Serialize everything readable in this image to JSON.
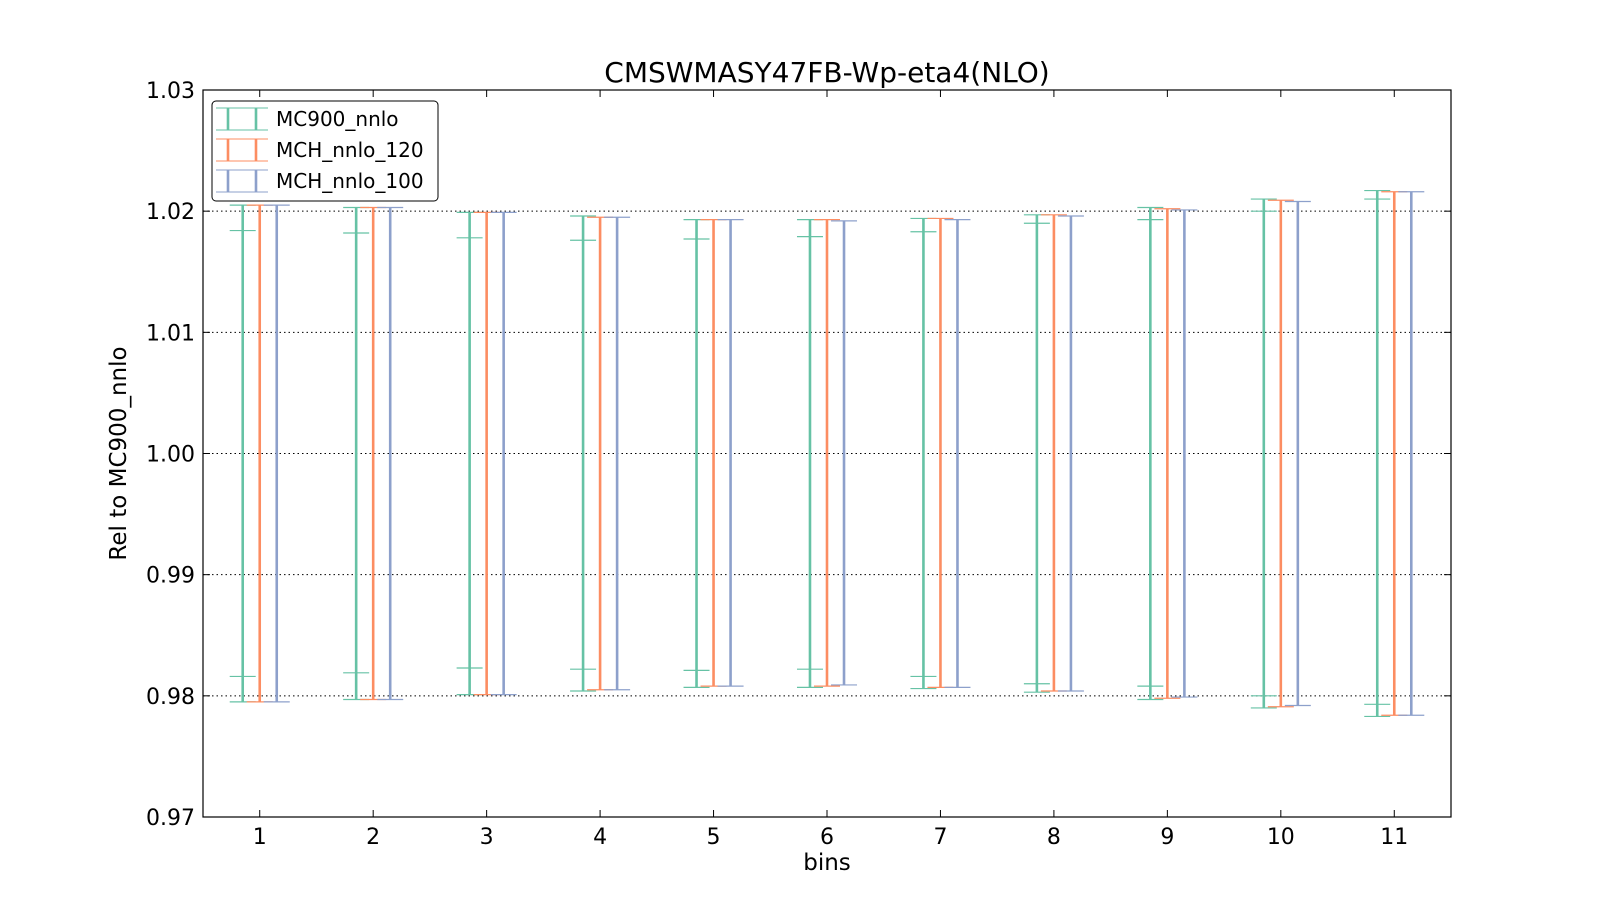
{
  "chart_data": {
    "type": "errorbar",
    "title": "CMSWMASY47FB-Wp-eta4(NLO)",
    "xlabel": "bins",
    "ylabel": "Rel to MC900_nnlo",
    "xlim": [
      0.5,
      11.5
    ],
    "ylim": [
      0.97,
      1.03
    ],
    "yticks": [
      "0.97",
      "0.98",
      "0.99",
      "1.00",
      "1.01",
      "1.02",
      "1.03"
    ],
    "categories": [
      "1",
      "2",
      "3",
      "4",
      "5",
      "6",
      "7",
      "8",
      "9",
      "10",
      "11"
    ],
    "grid": true,
    "legend_position": "top-left",
    "series": [
      {
        "name": "MC900_nnlo",
        "color": "#66c2a5",
        "lower": [
          0.9795,
          0.9797,
          0.9801,
          0.9804,
          0.9807,
          0.9807,
          0.9806,
          0.9803,
          0.9797,
          0.979,
          0.9783
        ],
        "upper": [
          1.0205,
          1.0203,
          1.0199,
          1.0196,
          1.0193,
          1.0193,
          1.0194,
          1.0197,
          1.0203,
          1.021,
          1.0217
        ],
        "inner_lower": [
          0.9816,
          0.9819,
          0.9823,
          0.9822,
          0.9821,
          0.9822,
          0.9816,
          0.981,
          0.9808,
          0.98,
          0.9793
        ],
        "inner_upper": [
          1.0184,
          1.0182,
          1.0178,
          1.0176,
          1.0177,
          1.0179,
          1.0183,
          1.019,
          1.0193,
          1.02,
          1.021
        ]
      },
      {
        "name": "MCH_nnlo_120",
        "color": "#fc8d62",
        "lower": [
          0.9795,
          0.9797,
          0.9801,
          0.9805,
          0.9808,
          0.9808,
          0.9807,
          0.9804,
          0.9798,
          0.9791,
          0.9784
        ],
        "upper": [
          1.0205,
          1.0203,
          1.0199,
          1.0195,
          1.0193,
          1.0193,
          1.0194,
          1.0197,
          1.0202,
          1.0209,
          1.0216
        ]
      },
      {
        "name": "MCH_nnlo_100",
        "color": "#8da0cb",
        "lower": [
          0.9795,
          0.9797,
          0.9801,
          0.9805,
          0.9808,
          0.9809,
          0.9807,
          0.9804,
          0.9799,
          0.9792,
          0.9784
        ],
        "upper": [
          1.0205,
          1.0203,
          1.0199,
          1.0195,
          1.0193,
          1.0192,
          1.0193,
          1.0196,
          1.0201,
          1.0208,
          1.0216
        ]
      }
    ]
  }
}
